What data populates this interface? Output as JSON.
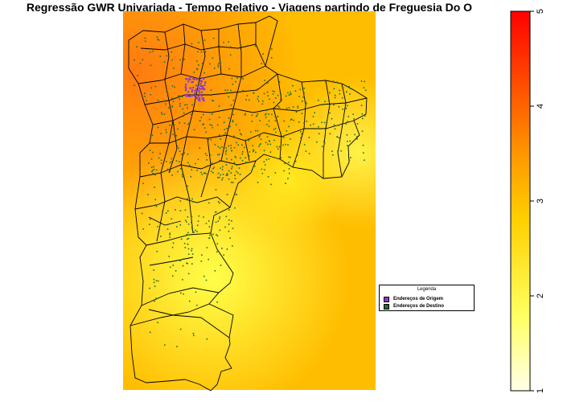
{
  "title": "Regressão GWR Univariada - Tempo Relativo - Viagens partindo de Freguesia Do O",
  "legend": {
    "title": "Legenda",
    "items": [
      {
        "label": "Endereços de Origem",
        "color": "#8e3ac8"
      },
      {
        "label": "Endereços de Destino",
        "color": "#1f6f2a"
      }
    ]
  },
  "color_scale": {
    "min": 1,
    "max": 5,
    "ticks": [
      "1",
      "2",
      "3",
      "4",
      "5"
    ],
    "colors": [
      "#ffffe8",
      "#ffff60",
      "#ffd000",
      "#ff9800",
      "#ff5000",
      "#ff0000"
    ]
  }
}
